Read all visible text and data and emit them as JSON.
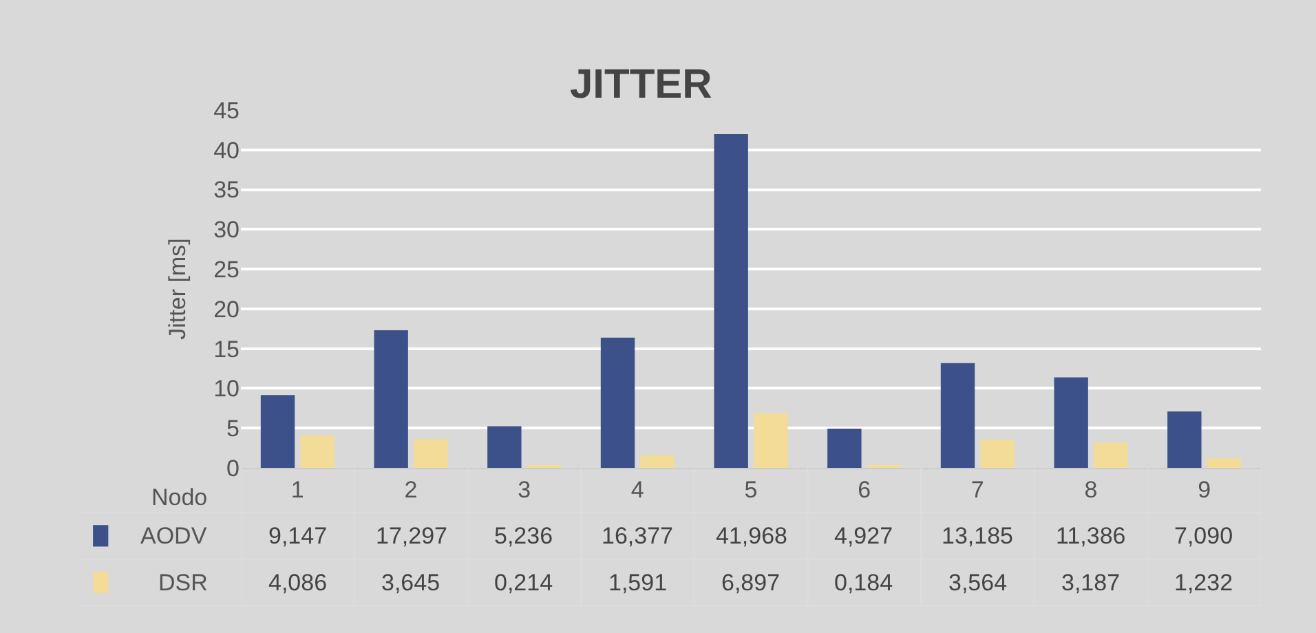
{
  "chart_data": {
    "type": "bar",
    "title": "JITTER",
    "ylabel": "Jitter [ms]",
    "xlabel": "Nodo",
    "categories": [
      "1",
      "2",
      "3",
      "4",
      "5",
      "6",
      "7",
      "8",
      "9"
    ],
    "series": [
      {
        "name": "AODV",
        "color": "#3c5189",
        "values": [
          9.147,
          17.297,
          5.236,
          16.377,
          41.968,
          4.927,
          13.185,
          11.386,
          7.09
        ],
        "value_labels": [
          "9,147",
          "17,297",
          "5,236",
          "16,377",
          "41,968",
          "4,927",
          "13,185",
          "11,386",
          "7,090"
        ]
      },
      {
        "name": "DSR",
        "color": "#f3dc98",
        "values": [
          4.086,
          3.645,
          0.214,
          1.591,
          6.897,
          0.184,
          3.564,
          3.187,
          1.232
        ],
        "value_labels": [
          "4,086",
          "3,645",
          "0,214",
          "1,591",
          "6,897",
          "0,184",
          "3,564",
          "3,187",
          "1,232"
        ]
      }
    ],
    "ylim": [
      0,
      45
    ],
    "yticks": [
      0,
      5,
      10,
      15,
      20,
      25,
      30,
      35,
      40,
      45
    ],
    "grid": "y",
    "legend": "bottom left"
  }
}
